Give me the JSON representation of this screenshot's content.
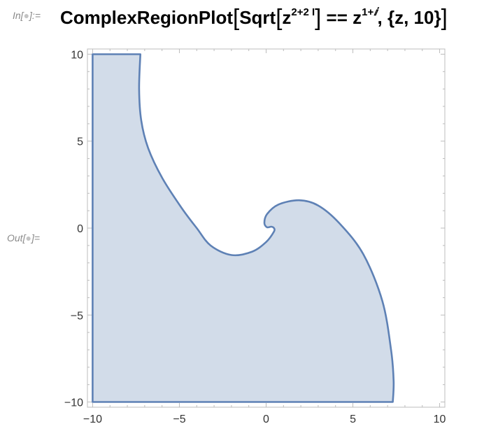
{
  "input_label": "In[",
  "input_label_end": "]:=",
  "output_label": "Out[",
  "output_label_end": "]=",
  "cell_dot": "●",
  "code": {
    "func": "ComplexRegionPlot",
    "open_bracket": "[",
    "sqrt": "Sqrt",
    "z1": "z",
    "exp1": "2+2 ",
    "exp1_i": "I",
    "close_bracket": "]",
    "eq": " == ",
    "z2": "z",
    "exp2": "1+",
    "exp2_i": "ⅈ",
    "rest": ", {z, 10}",
    "final_bracket": "]"
  },
  "chart_data": {
    "type": "area",
    "title": "",
    "xlabel": "",
    "ylabel": "",
    "xlim": [
      -10.3,
      10.3
    ],
    "ylim": [
      -10.3,
      10.3
    ],
    "xticks": [
      -10,
      -5,
      0,
      5,
      10
    ],
    "yticks": [
      -10,
      -5,
      0,
      5,
      10
    ],
    "xtick_labels": [
      "−10",
      "−5",
      "0",
      "5",
      "10"
    ],
    "ytick_labels": [
      "−10",
      "−5",
      "0",
      "5",
      "10"
    ],
    "fill_color": "#d2dce9",
    "stroke_color": "#5e81b5",
    "frame_color": "#bcbcbc",
    "region_boundary": [
      [
        -10,
        10
      ],
      [
        -7.25,
        10
      ],
      [
        -7.32,
        8.0
      ],
      [
        -7.2,
        6.2
      ],
      [
        -6.8,
        4.6
      ],
      [
        -6.0,
        2.9
      ],
      [
        -4.9,
        1.2
      ],
      [
        -4.0,
        0.0
      ],
      [
        -3.2,
        -1.0
      ],
      [
        -2.0,
        -1.55
      ],
      [
        -0.8,
        -1.35
      ],
      [
        0.0,
        -0.8
      ],
      [
        0.45,
        -0.2
      ],
      [
        0.45,
        0.0
      ],
      [
        0.3,
        0.08
      ],
      [
        0.05,
        0.05
      ],
      [
        -0.1,
        0.3
      ],
      [
        0.05,
        0.8
      ],
      [
        0.7,
        1.35
      ],
      [
        1.9,
        1.6
      ],
      [
        3.0,
        1.3
      ],
      [
        4.2,
        0.3
      ],
      [
        5.6,
        -1.5
      ],
      [
        6.7,
        -4.2
      ],
      [
        7.2,
        -7.0
      ],
      [
        7.35,
        -8.8
      ],
      [
        7.3,
        -10
      ],
      [
        -10,
        -10
      ]
    ]
  }
}
